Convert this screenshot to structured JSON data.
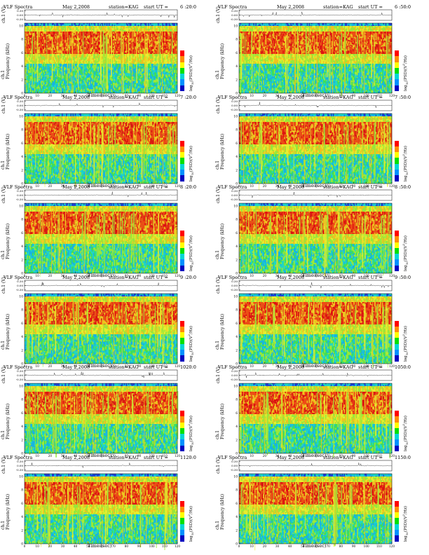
{
  "common": {
    "title": "VLF Spectra",
    "date": "May 2,2008",
    "station": "station=KAG",
    "start_prefix": "start  UT ="
  },
  "panels": [
    {
      "id": "p1",
      "start_time": "6 :20:0"
    },
    {
      "id": "p2",
      "start_time": "6 :50:0"
    },
    {
      "id": "p3",
      "start_time": "7 :20:0"
    },
    {
      "id": "p4",
      "start_time": "7 :50:0"
    },
    {
      "id": "p5",
      "start_time": "8 :20:0"
    },
    {
      "id": "p6",
      "start_time": "8 :50:0"
    },
    {
      "id": "p7",
      "start_time": "9 :20:0"
    },
    {
      "id": "p8",
      "start_time": "9 :50:0"
    },
    {
      "id": "p9",
      "start_time": "1020:0"
    },
    {
      "id": "p10",
      "start_time": "1050:0"
    },
    {
      "id": "p11",
      "start_time": "1120:0"
    },
    {
      "id": "p12",
      "start_time": "1150:0"
    }
  ],
  "axes": {
    "ch_label": "ch.1 (V)",
    "ch_ticks": [
      "0.30",
      "0.00",
      "-0.30"
    ],
    "freq_label": "ch.1\nFrequency  (kHz)",
    "freq_ticks": [
      "0",
      "2",
      "4",
      "6",
      "8",
      "10"
    ],
    "time_label": "Time  (sec)",
    "time_ticks": [
      "0",
      "10",
      "20",
      "30",
      "40",
      "50",
      "60",
      "70",
      "80",
      "90",
      "100",
      "110",
      "120"
    ],
    "colorbar_label": "log10(PSD)(V²/Hz)"
  },
  "colors": {
    "spectrogram": [
      "#1f3fd6",
      "#17b2e6",
      "#1fd6c8",
      "#3ede5a",
      "#9be83a",
      "#e8ee2e",
      "#f2c21e",
      "#f04a14",
      "#e01010"
    ],
    "colorbar": [
      "#ff0000",
      "#ff8c00",
      "#ffff00",
      "#00e000",
      "#00d6d6",
      "#0090ff",
      "#0000c0"
    ]
  },
  "chart_data": {
    "type": "heatmap",
    "description_of_series": "12 VLF spectrogram panels with channel waveform trace",
    "x": {
      "label": "Time  (sec)",
      "range": [
        0,
        120
      ]
    },
    "y": {
      "label": "Frequency  (kHz)",
      "range": [
        0,
        10
      ]
    },
    "waveform_y_range": [
      -0.3,
      0.3
    ],
    "panels": 12,
    "layout": "6 rows x 2 columns"
  }
}
